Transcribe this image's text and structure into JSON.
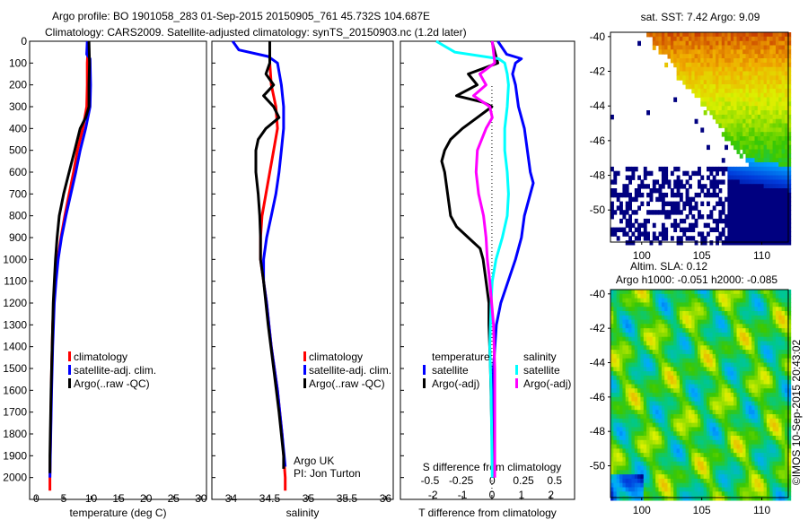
{
  "header": {
    "title_line1": "Argo profile: BO 1901058_283 01-Sep-2015 20150905_761 45.732S 104.687E",
    "title_line2": "Climatology: CARS2009. Satellite-adjusted climatology: synTS_20150903.nc (1.2d later)"
  },
  "colors": {
    "clim": "#ff0000",
    "sat": "#0000ff",
    "argo": "#000000",
    "sal_sat": "#00ffff",
    "sal_argo": "#ff00ff"
  },
  "chart_data": [
    {
      "type": "line",
      "id": "temperature",
      "xlabel": "temperature (deg C)",
      "ylabel": "",
      "xlim": [
        -1.2,
        31
      ],
      "ylim": [
        2100,
        0
      ],
      "xticks": [
        "0",
        "5",
        "10",
        "15",
        "20",
        "25",
        "30"
      ],
      "xtick_values": [
        0,
        5,
        10,
        15,
        20,
        25,
        30
      ],
      "yticks": [
        0,
        100,
        200,
        300,
        400,
        500,
        600,
        700,
        800,
        900,
        1000,
        1100,
        1200,
        1300,
        1400,
        1500,
        1600,
        1700,
        1800,
        1900,
        2000
      ],
      "legend": [
        "climatology",
        "satellite-adj. clim.",
        "Argo(..raw -QC)"
      ],
      "series": [
        {
          "name": "climatology",
          "color": "#ff0000",
          "depth": [
            0,
            100,
            200,
            300,
            400,
            500,
            600,
            700,
            800,
            900,
            1000,
            1100,
            1200,
            1300,
            1500,
            2000,
            2060
          ],
          "values": [
            9.5,
            9.3,
            9.3,
            9.2,
            8.5,
            7.5,
            6.8,
            6.0,
            5.2,
            4.5,
            3.9,
            3.5,
            3.2,
            3.0,
            2.8,
            2.5,
            2.5
          ]
        },
        {
          "name": "satellite-adj. clim.",
          "color": "#0000ff",
          "depth": [
            0,
            60,
            80,
            200,
            300,
            400,
            500,
            600,
            700,
            800,
            900,
            1000,
            1100,
            1200,
            1400,
            1600,
            2000
          ],
          "values": [
            9.3,
            9.2,
            9.8,
            9.9,
            9.8,
            9.0,
            8.0,
            7.2,
            6.3,
            5.4,
            4.6,
            4.0,
            3.6,
            3.3,
            3.0,
            2.8,
            2.5
          ]
        },
        {
          "name": "Argo(..raw -QC)",
          "color": "#000000",
          "depth": [
            0,
            100,
            200,
            300,
            350,
            400,
            500,
            600,
            700,
            800,
            900,
            1000,
            1100,
            1200,
            1400,
            1600,
            1900,
            1980
          ],
          "values": [
            9.6,
            9.7,
            9.6,
            9.6,
            9.0,
            8.0,
            7.0,
            6.0,
            5.0,
            4.2,
            3.8,
            3.5,
            3.3,
            3.1,
            2.9,
            2.7,
            2.5,
            2.5
          ]
        }
      ]
    },
    {
      "type": "line",
      "id": "salinity",
      "xlabel": "salinity",
      "xlim": [
        33.75,
        36.1
      ],
      "ylim": [
        2100,
        0
      ],
      "xticks": [
        "34",
        "34.5",
        "35",
        "35.5",
        "36"
      ],
      "xtick_values": [
        34,
        34.5,
        35,
        35.5,
        36
      ],
      "legend": [
        "climatology",
        "satellite-adj. clim.",
        "Argo(..raw -QC)"
      ],
      "annotations": [
        "Argo UK",
        "PI: Jon Turton"
      ],
      "series": [
        {
          "name": "climatology",
          "color": "#ff0000",
          "depth": [
            0,
            100,
            200,
            300,
            400,
            500,
            600,
            700,
            800,
            900,
            1000,
            1100,
            1200,
            1400,
            1600,
            1800,
            2000,
            2060
          ],
          "values": [
            34.5,
            34.5,
            34.52,
            34.58,
            34.6,
            34.55,
            34.5,
            34.45,
            34.4,
            34.38,
            34.38,
            34.42,
            34.46,
            34.52,
            34.6,
            34.66,
            34.7,
            34.7
          ]
        },
        {
          "name": "satellite-adj. clim.",
          "color": "#0000ff",
          "depth": [
            0,
            40,
            70,
            100,
            200,
            300,
            400,
            500,
            600,
            700,
            800,
            900,
            1000,
            1100,
            1200,
            1400,
            1600,
            1800,
            1950
          ],
          "values": [
            34.02,
            34.1,
            34.48,
            34.6,
            34.65,
            34.68,
            34.68,
            34.65,
            34.62,
            34.58,
            34.52,
            34.46,
            34.42,
            34.42,
            34.46,
            34.52,
            34.6,
            34.66,
            34.7
          ]
        },
        {
          "name": "Argo(..raw -QC)",
          "color": "#000000",
          "depth": [
            0,
            100,
            150,
            200,
            250,
            300,
            350,
            400,
            450,
            500,
            600,
            700,
            800,
            900,
            1000,
            1100,
            1300,
            1500,
            1700,
            1900,
            1960
          ],
          "values": [
            34.5,
            34.5,
            34.45,
            34.55,
            34.42,
            34.55,
            34.62,
            34.45,
            34.35,
            34.32,
            34.32,
            34.35,
            34.37,
            34.38,
            34.38,
            34.42,
            34.48,
            34.55,
            34.62,
            34.68,
            34.68
          ]
        }
      ]
    },
    {
      "type": "line",
      "id": "difference",
      "xlabel": "T difference from climatology",
      "x2label": "S difference from climatology",
      "xlim": [
        -3.1,
        2.8
      ],
      "x2lim": [
        -0.737,
        0.66
      ],
      "ylim": [
        2100,
        0
      ],
      "xticks": [
        "-2",
        "-1",
        "0",
        "1",
        "2"
      ],
      "xtick_values": [
        -2,
        -1,
        0,
        1,
        2
      ],
      "x2ticks": [
        "-0.5",
        "-0.25",
        "0",
        "0.25",
        "0.5"
      ],
      "x2tick_values": [
        -0.5,
        -0.25,
        0,
        0.25,
        0.5
      ],
      "legend_headers": [
        "temperature",
        "salinity"
      ],
      "legend": [
        "satellite",
        "Argo(-adj)",
        "satellite",
        "Argo(-adj)"
      ],
      "series": [
        {
          "name": "T satellite",
          "axis": "T",
          "color": "#0000ff",
          "depth": [
            0,
            60,
            80,
            100,
            150,
            200,
            300,
            400,
            500,
            600,
            650,
            700,
            800,
            900,
            1000,
            1100,
            1200,
            1300,
            1500,
            2000
          ],
          "values": [
            0.2,
            0.5,
            1.0,
            0.8,
            0.7,
            0.8,
            0.9,
            1.1,
            1.2,
            1.3,
            1.4,
            1.3,
            1.1,
            1.0,
            0.8,
            0.55,
            0.3,
            0.15,
            0.05,
            0.02
          ]
        },
        {
          "name": "T Argo(-adj)",
          "axis": "T",
          "color": "#000000",
          "depth": [
            0,
            100,
            150,
            200,
            250,
            280,
            300,
            350,
            400,
            450,
            500,
            550,
            600,
            700,
            800,
            850,
            900,
            950,
            1000,
            1100,
            1200,
            1300,
            1500,
            1800,
            2000
          ],
          "values": [
            0,
            0.2,
            -0.8,
            -0.5,
            -1.2,
            -0.3,
            0,
            -0.5,
            -1.0,
            -1.4,
            -1.6,
            -1.7,
            -1.6,
            -1.5,
            -1.4,
            -1.2,
            -0.8,
            -0.4,
            -0.3,
            -0.2,
            -0.1,
            -0.1,
            -0.05,
            0,
            0.05
          ]
        },
        {
          "name": "S satellite",
          "axis": "S",
          "color": "#00ffff",
          "depth": [
            0,
            50,
            80,
            100,
            150,
            200,
            300,
            400,
            500,
            600,
            700,
            800,
            900,
            1000,
            1100,
            1200,
            1400,
            1600,
            2000
          ],
          "values": [
            -0.45,
            -0.3,
            0.05,
            0.1,
            0.12,
            0.13,
            0.12,
            0.1,
            0.1,
            0.12,
            0.13,
            0.12,
            0.08,
            0.03,
            0,
            -0.01,
            -0.02,
            -0.01,
            0
          ]
        },
        {
          "name": "S Argo(-adj)",
          "axis": "S",
          "color": "#ff00ff",
          "depth": [
            0,
            100,
            150,
            200,
            250,
            300,
            350,
            400,
            500,
            600,
            700,
            800,
            900,
            1000,
            1100,
            1300,
            1500,
            1800,
            2000
          ],
          "values": [
            0,
            0.02,
            -0.1,
            -0.05,
            -0.15,
            -0.02,
            0,
            -0.05,
            -0.12,
            -0.13,
            -0.11,
            -0.07,
            -0.05,
            -0.04,
            -0.02,
            0.01,
            0.02,
            0.02,
            0.02
          ]
        }
      ]
    },
    {
      "type": "heatmap",
      "id": "sst-map",
      "title": "sat. SST: 7.42 Argo: 9.09",
      "xlim": [
        97.4,
        112.2
      ],
      "ylim": [
        -51.85,
        -39.75
      ],
      "xticks": [
        "100",
        "105",
        "110"
      ],
      "xtick_values": [
        100,
        105,
        110
      ],
      "yticks": [
        "-40",
        "-42",
        "-44",
        "-46",
        "-48",
        "-50"
      ],
      "ytick_values": [
        -40,
        -42,
        -44,
        -46,
        -48,
        -50
      ]
    },
    {
      "type": "heatmap",
      "id": "sla-map",
      "title": "Altim. SLA: 0.12",
      "subtitle": "Argo h1000: -0.051 h2000: -0.085",
      "xlim": [
        97.4,
        112.2
      ],
      "ylim": [
        -51.85,
        -39.75
      ],
      "xticks": [
        "100",
        "105",
        "110"
      ],
      "xtick_values": [
        100,
        105,
        110
      ],
      "yticks": [
        "-40",
        "-42",
        "-44",
        "-46",
        "-48",
        "-50"
      ],
      "ytick_values": [
        -40,
        -42,
        -44,
        -46,
        -48,
        -50
      ]
    }
  ],
  "credit": "©IMOS 10-Sep-2015 20:43:02"
}
